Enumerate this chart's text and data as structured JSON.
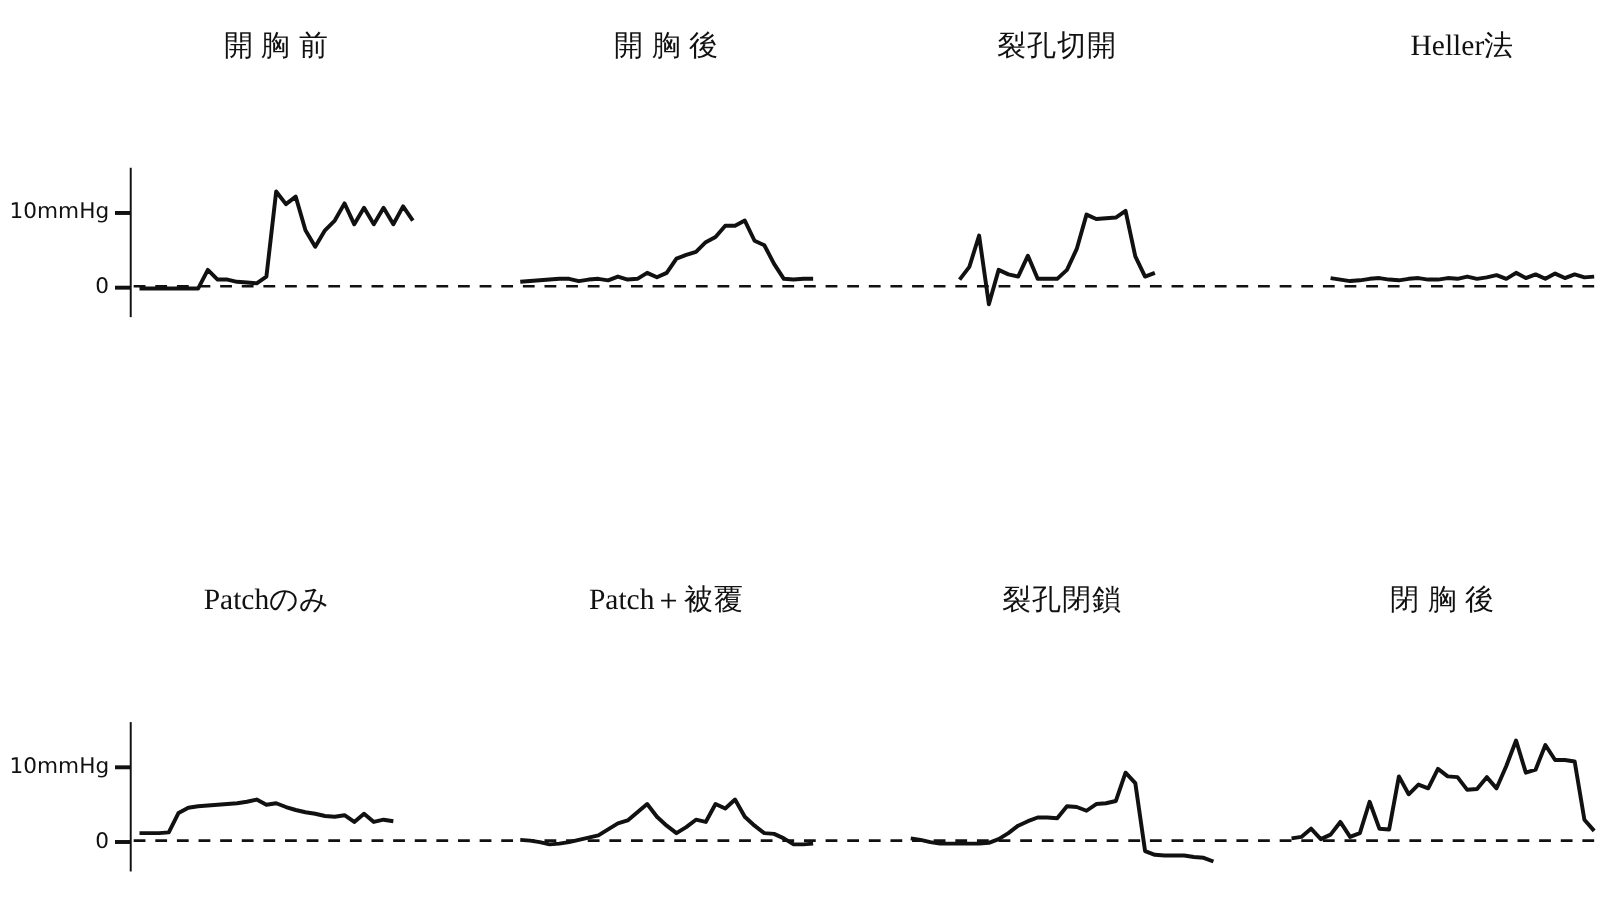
{
  "chart_data": [
    {
      "type": "line",
      "categories": [
        null,
        null,
        null,
        null,
        null,
        null,
        null,
        null,
        null,
        null,
        null,
        null,
        null,
        null,
        null,
        null,
        null,
        null,
        null,
        null,
        null,
        null,
        null,
        null,
        null,
        null,
        null,
        null,
        null,
        null,
        null,
        null,
        null,
        null,
        null,
        null,
        null,
        null,
        null,
        null,
        null,
        null,
        null,
        null,
        null,
        null,
        null,
        null,
        null,
        null,
        null,
        null,
        null,
        null,
        null,
        null,
        null,
        null,
        null,
        null,
        null,
        null,
        null,
        null,
        null,
        null,
        null,
        null,
        null,
        null,
        null,
        null,
        null,
        null,
        null,
        null,
        null,
        null,
        null,
        null,
        null,
        null,
        null,
        null,
        null,
        null,
        null,
        null,
        null,
        null,
        null,
        null,
        null,
        null,
        null,
        null,
        null,
        null,
        null,
        null,
        null,
        null,
        null,
        null,
        null,
        null,
        null,
        null,
        null,
        null,
        null,
        null,
        null,
        null,
        null,
        null,
        null,
        null,
        null,
        null,
        null,
        null,
        null,
        null,
        null,
        null,
        null,
        null,
        null,
        null,
        null,
        null,
        null,
        null,
        null,
        null,
        null,
        null,
        null,
        null,
        null,
        null,
        null,
        null,
        null,
        null,
        null,
        null,
        null,
        null,
        null
      ],
      "series": [
        {
          "color": "#111111",
          "values": [
            null,
            -0.3,
            -0.3,
            -0.3,
            -0.3,
            -0.3,
            -0.3,
            -0.3,
            2.2,
            0.9,
            0.9,
            0.6,
            0.5,
            0.4,
            1.3,
            12.7,
            11.0,
            12.0,
            7.5,
            5.3,
            7.5,
            8.8,
            11.1,
            8.3,
            10.5,
            8.3,
            10.5,
            8.3,
            10.7,
            8.8,
            null,
            null,
            null,
            null,
            null,
            null,
            null,
            null,
            null,
            null,
            null,
            null,
            null,
            null,
            null,
            null,
            null,
            null,
            null,
            null,
            null,
            null,
            null,
            null,
            null,
            null,
            null,
            null,
            null,
            null,
            null,
            null,
            null,
            null,
            null,
            null,
            null,
            null,
            null,
            null,
            null,
            null,
            null,
            null,
            null,
            null,
            null,
            null,
            null,
            null,
            null,
            null,
            null,
            null,
            null,
            null,
            null,
            null,
            null,
            null,
            null,
            null,
            null,
            null,
            null,
            null,
            null,
            null,
            null,
            null,
            null,
            null,
            null,
            null,
            null,
            null,
            null,
            null,
            null,
            null,
            null,
            null,
            null,
            null,
            null,
            null,
            null,
            null,
            null,
            null,
            null,
            null,
            null,
            null,
            null,
            null,
            null,
            null,
            null,
            null,
            null,
            null,
            null,
            null,
            null,
            null,
            null,
            null,
            null,
            null,
            null,
            null,
            null,
            null,
            null,
            null,
            null,
            null,
            null,
            null,
            null
          ]
        },
        {
          "color": "#111111",
          "values": [
            null,
            null,
            null,
            null,
            null,
            null,
            null,
            null,
            null,
            null,
            null,
            null,
            null,
            null,
            null,
            null,
            null,
            null,
            null,
            null,
            null,
            null,
            null,
            null,
            null,
            null,
            null,
            null,
            null,
            null,
            null,
            null,
            null,
            null,
            null,
            null,
            null,
            null,
            null,
            null,
            0.6,
            0.7,
            0.8,
            0.9,
            1.0,
            1.0,
            0.7,
            0.9,
            1.0,
            0.8,
            1.3,
            0.9,
            1.0,
            1.8,
            1.2,
            1.8,
            3.7,
            4.2,
            4.6,
            5.9,
            6.6,
            8.1,
            8.1,
            8.8,
            6.1,
            5.5,
            3.0,
            1.0,
            0.9,
            1.0,
            1.0,
            null,
            null,
            null,
            null,
            null,
            null,
            null,
            null,
            null,
            null,
            null,
            null,
            null,
            null,
            null,
            null,
            null,
            null,
            null,
            null,
            null,
            null,
            null,
            null,
            null,
            null,
            null,
            null,
            null,
            null,
            null,
            null,
            null,
            null,
            null,
            null,
            null,
            null,
            null,
            null,
            null,
            null,
            null,
            null,
            null,
            null,
            null,
            null,
            null,
            null,
            null,
            null,
            null,
            null,
            null,
            null,
            null,
            null,
            null,
            null,
            null,
            null,
            null,
            null,
            null,
            null,
            null,
            null,
            null,
            null,
            null,
            null,
            null,
            null,
            null,
            null,
            null,
            null,
            null,
            null
          ]
        },
        {
          "color": "#111111",
          "values": [
            null,
            null,
            null,
            null,
            null,
            null,
            null,
            null,
            null,
            null,
            null,
            null,
            null,
            null,
            null,
            null,
            null,
            null,
            null,
            null,
            null,
            null,
            null,
            null,
            null,
            null,
            null,
            null,
            null,
            null,
            null,
            null,
            null,
            null,
            null,
            null,
            null,
            null,
            null,
            null,
            null,
            null,
            null,
            null,
            null,
            null,
            null,
            null,
            null,
            null,
            null,
            null,
            null,
            null,
            null,
            null,
            null,
            null,
            null,
            null,
            null,
            null,
            null,
            null,
            null,
            null,
            null,
            null,
            null,
            null,
            null,
            null,
            null,
            null,
            null,
            null,
            null,
            null,
            null,
            null,
            null,
            null,
            null,
            null,
            null,
            0.9,
            2.6,
            6.8,
            -2.4,
            2.2,
            1.6,
            1.3,
            4.1,
            1.0,
            1.0,
            1.0,
            2.2,
            5.0,
            9.6,
            9.0,
            9.1,
            9.2,
            10.1,
            4.0,
            1.3,
            1.8,
            null,
            null,
            null,
            null,
            null,
            null,
            null,
            null,
            null,
            null,
            null,
            null,
            null,
            null,
            null,
            null,
            null,
            null,
            null,
            null,
            null,
            null,
            null,
            null,
            null,
            null,
            null,
            null,
            null,
            null,
            null,
            null,
            null,
            null,
            null,
            null,
            null,
            null,
            null,
            null,
            null,
            null,
            null,
            null,
            null
          ]
        },
        {
          "color": "#111111",
          "values": [
            null,
            null,
            null,
            null,
            null,
            null,
            null,
            null,
            null,
            null,
            null,
            null,
            null,
            null,
            null,
            null,
            null,
            null,
            null,
            null,
            null,
            null,
            null,
            null,
            null,
            null,
            null,
            null,
            null,
            null,
            null,
            null,
            null,
            null,
            null,
            null,
            null,
            null,
            null,
            null,
            null,
            null,
            null,
            null,
            null,
            null,
            null,
            null,
            null,
            null,
            null,
            null,
            null,
            null,
            null,
            null,
            null,
            null,
            null,
            null,
            null,
            null,
            null,
            null,
            null,
            null,
            null,
            null,
            null,
            null,
            null,
            null,
            null,
            null,
            null,
            null,
            null,
            null,
            null,
            null,
            null,
            null,
            null,
            null,
            null,
            null,
            null,
            null,
            null,
            null,
            null,
            null,
            null,
            null,
            null,
            null,
            null,
            null,
            null,
            null,
            null,
            null,
            null,
            null,
            null,
            null,
            null,
            null,
            null,
            null,
            null,
            null,
            null,
            null,
            null,
            null,
            null,
            null,
            null,
            null,
            null,
            null,
            null,
            1.1,
            0.9,
            0.7,
            0.8,
            1.0,
            1.1,
            0.9,
            0.8,
            1.0,
            1.1,
            0.9,
            0.9,
            1.1,
            1.0,
            1.3,
            1.0,
            1.2,
            1.5,
            1.0,
            1.8,
            1.1,
            1.6,
            1.0,
            1.7,
            1.1,
            1.6,
            1.2,
            1.3
          ]
        }
      ],
      "annotations": [
        "開 胸 前",
        "開 胸 後",
        "裂孔切開",
        "Heller法"
      ],
      "ylim": [
        -4,
        16
      ],
      "yticks": [
        0,
        {
          "value": 10,
          "label": "10mmHg"
        }
      ],
      "tick_labels": "y",
      "grid": false,
      "ref_lines": [
        {
          "axis": "y",
          "value": 0,
          "line_style": "dashed",
          "color": "#111111"
        }
      ]
    },
    {
      "type": "line",
      "categories": [
        null,
        null,
        null,
        null,
        null,
        null,
        null,
        null,
        null,
        null,
        null,
        null,
        null,
        null,
        null,
        null,
        null,
        null,
        null,
        null,
        null,
        null,
        null,
        null,
        null,
        null,
        null,
        null,
        null,
        null,
        null,
        null,
        null,
        null,
        null,
        null,
        null,
        null,
        null,
        null,
        null,
        null,
        null,
        null,
        null,
        null,
        null,
        null,
        null,
        null,
        null,
        null,
        null,
        null,
        null,
        null,
        null,
        null,
        null,
        null,
        null,
        null,
        null,
        null,
        null,
        null,
        null,
        null,
        null,
        null,
        null,
        null,
        null,
        null,
        null,
        null,
        null,
        null,
        null,
        null,
        null,
        null,
        null,
        null,
        null,
        null,
        null,
        null,
        null,
        null,
        null,
        null,
        null,
        null,
        null,
        null,
        null,
        null,
        null,
        null,
        null,
        null,
        null,
        null,
        null,
        null,
        null,
        null,
        null,
        null,
        null,
        null,
        null,
        null,
        null,
        null,
        null,
        null,
        null,
        null,
        null,
        null,
        null,
        null,
        null,
        null,
        null,
        null,
        null,
        null,
        null,
        null,
        null,
        null,
        null,
        null,
        null,
        null,
        null,
        null,
        null,
        null,
        null,
        null,
        null,
        null,
        null,
        null,
        null,
        null,
        null
      ],
      "series": [
        {
          "color": "#111111",
          "values": [
            null,
            1.0,
            1.0,
            1.0,
            1.1,
            3.7,
            4.4,
            4.6,
            4.7,
            4.8,
            4.9,
            5.0,
            5.2,
            5.5,
            4.8,
            5.0,
            4.5,
            4.1,
            3.8,
            3.6,
            3.3,
            3.2,
            3.4,
            2.5,
            3.6,
            2.5,
            2.8,
            2.6,
            null,
            null,
            null,
            null,
            null,
            null,
            null,
            null,
            null,
            null,
            null,
            null,
            null,
            null,
            null,
            null,
            null,
            null,
            null,
            null,
            null,
            null,
            null,
            null,
            null,
            null,
            null,
            null,
            null,
            null,
            null,
            null,
            null,
            null,
            null,
            null,
            null,
            null,
            null,
            null,
            null,
            null,
            null,
            null,
            null,
            null,
            null,
            null,
            null,
            null,
            null,
            null,
            null,
            null,
            null,
            null,
            null,
            null,
            null,
            null,
            null,
            null,
            null,
            null,
            null,
            null,
            null,
            null,
            null,
            null,
            null,
            null,
            null,
            null,
            null,
            null,
            null,
            null,
            null,
            null,
            null,
            null,
            null,
            null,
            null,
            null,
            null,
            null,
            null,
            null,
            null,
            null,
            null,
            null,
            null,
            null,
            null,
            null,
            null,
            null,
            null,
            null,
            null,
            null,
            null,
            null,
            null,
            null,
            null,
            null,
            null,
            null,
            null,
            null,
            null,
            null,
            null,
            null,
            null,
            null,
            null,
            null,
            null
          ]
        },
        {
          "color": "#111111",
          "values": [
            null,
            null,
            null,
            null,
            null,
            null,
            null,
            null,
            null,
            null,
            null,
            null,
            null,
            null,
            null,
            null,
            null,
            null,
            null,
            null,
            null,
            null,
            null,
            null,
            null,
            null,
            null,
            null,
            null,
            null,
            null,
            null,
            null,
            null,
            null,
            null,
            null,
            null,
            null,
            null,
            0.1,
            0.0,
            -0.2,
            -0.5,
            -0.4,
            -0.2,
            0.1,
            0.4,
            0.7,
            1.5,
            2.3,
            2.7,
            3.8,
            4.9,
            3.2,
            2.0,
            1.0,
            1.8,
            2.8,
            2.5,
            4.9,
            4.3,
            5.5,
            3.2,
            2.0,
            1.0,
            0.9,
            0.3,
            -0.5,
            -0.5,
            -0.4,
            null,
            null,
            null,
            null,
            null,
            null,
            null,
            null,
            null,
            null,
            null,
            null,
            null,
            null,
            null,
            null,
            null,
            null,
            null,
            null,
            null,
            null,
            null,
            null,
            null,
            null,
            null,
            null,
            null,
            null,
            null,
            null,
            null,
            null,
            null,
            null,
            null,
            null,
            null,
            null,
            null,
            null,
            null,
            null,
            null,
            null,
            null,
            null,
            null,
            null,
            null,
            null,
            null,
            null,
            null,
            null,
            null,
            null,
            null,
            null,
            null,
            null,
            null,
            null,
            null,
            null,
            null,
            null,
            null,
            null,
            null,
            null,
            null,
            null,
            null,
            null,
            null,
            null,
            null,
            null
          ]
        },
        {
          "color": "#111111",
          "values": [
            null,
            null,
            null,
            null,
            null,
            null,
            null,
            null,
            null,
            null,
            null,
            null,
            null,
            null,
            null,
            null,
            null,
            null,
            null,
            null,
            null,
            null,
            null,
            null,
            null,
            null,
            null,
            null,
            null,
            null,
            null,
            null,
            null,
            null,
            null,
            null,
            null,
            null,
            null,
            null,
            null,
            null,
            null,
            null,
            null,
            null,
            null,
            null,
            null,
            null,
            null,
            null,
            null,
            null,
            null,
            null,
            null,
            null,
            null,
            null,
            null,
            null,
            null,
            null,
            null,
            null,
            null,
            null,
            null,
            null,
            null,
            null,
            null,
            null,
            null,
            null,
            null,
            null,
            null,
            null,
            0.3,
            0.1,
            -0.2,
            -0.4,
            -0.4,
            -0.4,
            -0.4,
            -0.4,
            -0.3,
            0.2,
            1.0,
            2.0,
            2.6,
            3.1,
            3.1,
            3.0,
            4.6,
            4.5,
            4.0,
            4.9,
            5.0,
            5.3,
            9.1,
            7.7,
            -1.4,
            -1.9,
            -2.0,
            -2.0,
            -2.0,
            -2.2,
            -2.3,
            -2.8,
            null,
            null,
            null,
            null,
            null,
            null,
            null,
            null,
            null,
            null,
            null,
            null,
            null,
            null,
            null,
            null,
            null,
            null,
            null,
            null,
            null,
            null,
            null,
            null,
            null,
            null,
            null,
            null,
            null,
            null,
            null,
            null,
            null,
            null,
            null,
            null,
            null,
            null,
            null
          ]
        },
        {
          "color": "#111111",
          "values": [
            null,
            null,
            null,
            null,
            null,
            null,
            null,
            null,
            null,
            null,
            null,
            null,
            null,
            null,
            null,
            null,
            null,
            null,
            null,
            null,
            null,
            null,
            null,
            null,
            null,
            null,
            null,
            null,
            null,
            null,
            null,
            null,
            null,
            null,
            null,
            null,
            null,
            null,
            null,
            null,
            null,
            null,
            null,
            null,
            null,
            null,
            null,
            null,
            null,
            null,
            null,
            null,
            null,
            null,
            null,
            null,
            null,
            null,
            null,
            null,
            null,
            null,
            null,
            null,
            null,
            null,
            null,
            null,
            null,
            null,
            null,
            null,
            null,
            null,
            null,
            null,
            null,
            null,
            null,
            null,
            null,
            null,
            null,
            null,
            null,
            null,
            null,
            null,
            null,
            null,
            null,
            null,
            null,
            null,
            null,
            null,
            null,
            null,
            null,
            null,
            null,
            null,
            null,
            null,
            null,
            null,
            null,
            null,
            null,
            null,
            null,
            null,
            null,
            null,
            null,
            null,
            null,
            null,
            null,
            0.3,
            0.5,
            1.6,
            0.2,
            0.8,
            2.5,
            0.5,
            1.0,
            5.2,
            1.6,
            1.5,
            8.6,
            6.2,
            7.5,
            7.0,
            9.6,
            8.6,
            8.5,
            6.8,
            6.9,
            8.5,
            7.0,
            10.0,
            13.4,
            9.1,
            9.5,
            12.8,
            10.8,
            10.8,
            10.6,
            2.8,
            1.3
          ]
        }
      ],
      "annotations": [
        "Patchのみ",
        "Patch＋被覆",
        "裂孔閉鎖",
        "閉 胸 後"
      ],
      "ylim": [
        -4,
        16
      ],
      "yticks": [
        0,
        {
          "value": 10,
          "label": "10mmHg"
        }
      ],
      "tick_labels": "y",
      "grid": false,
      "ref_lines": [
        {
          "axis": "y",
          "value": 0,
          "line_style": "dashed",
          "color": "#111111"
        }
      ]
    }
  ]
}
